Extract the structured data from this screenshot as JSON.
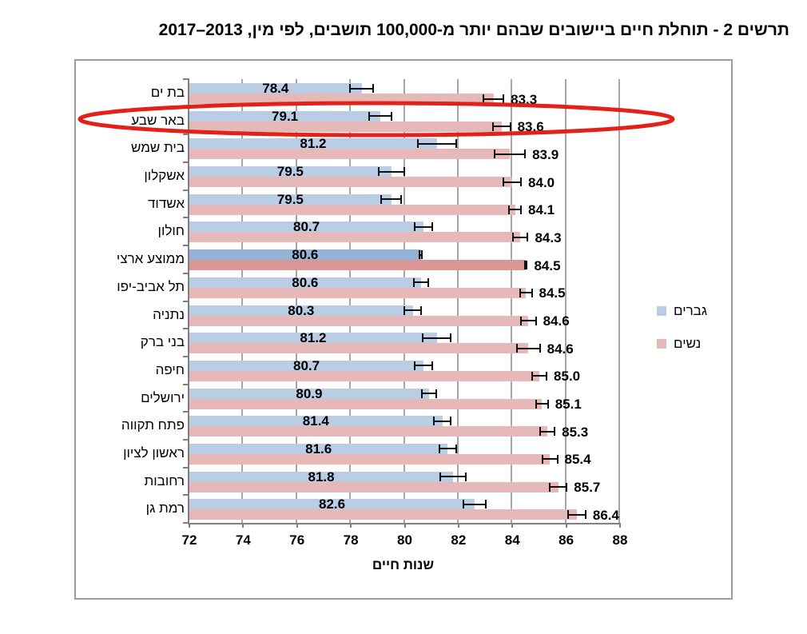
{
  "chart_data": {
    "type": "bar",
    "orientation": "horizontal",
    "title": "תרשים 2 - תוחלת חיים ביישובים שבהם יותר מ-100,000 תושבים, לפי מין, 2013–2017",
    "xlabel": "שנות חיים",
    "xlim": [
      72,
      88
    ],
    "x_ticks": [
      72,
      74,
      76,
      78,
      80,
      82,
      84,
      86,
      88
    ],
    "grid": "vertical",
    "legend_position": "right-middle",
    "categories": [
      "בת ים",
      "באר שבע",
      "בית שמש",
      "אשקלון",
      "אשדוד",
      "חולון",
      "ממוצע ארצי",
      "תל אביב-יפו",
      "נתניה",
      "בני ברק",
      "חיפה",
      "ירושלים",
      "פתח תקווה",
      "ראשון לציון",
      "רחובות",
      "רמת גן"
    ],
    "series": [
      {
        "name": "גברים",
        "color": "#b9cde5",
        "highlight_color": "#95b3d7",
        "values": [
          78.4,
          79.1,
          81.2,
          79.5,
          79.5,
          80.7,
          80.6,
          80.6,
          80.3,
          81.2,
          80.7,
          80.9,
          81.4,
          81.6,
          81.8,
          82.6
        ],
        "error_bars": [
          0.45,
          0.45,
          0.75,
          0.5,
          0.4,
          0.35,
          0.07,
          0.3,
          0.35,
          0.55,
          0.35,
          0.3,
          0.35,
          0.35,
          0.5,
          0.45
        ]
      },
      {
        "name": "נשים",
        "color": "#e6b9b8",
        "highlight_color": "#d99694",
        "values": [
          83.3,
          83.6,
          83.9,
          84.0,
          84.1,
          84.3,
          84.5,
          84.5,
          84.6,
          84.6,
          85.0,
          85.1,
          85.3,
          85.4,
          85.7,
          86.4
        ],
        "error_bars": [
          0.4,
          0.35,
          0.6,
          0.35,
          0.25,
          0.3,
          0.07,
          0.25,
          0.3,
          0.45,
          0.3,
          0.25,
          0.3,
          0.3,
          0.35,
          0.35
        ]
      }
    ],
    "highlight_category": "ממוצע ארצי",
    "annotation": {
      "shape": "ellipse",
      "category": "באר שבע",
      "color": "#e32119"
    },
    "colors": {
      "gridline": "#a6a6a6",
      "axis": "#808080",
      "error_bar": "#111111",
      "chart_border": "#9d9d9d"
    }
  }
}
